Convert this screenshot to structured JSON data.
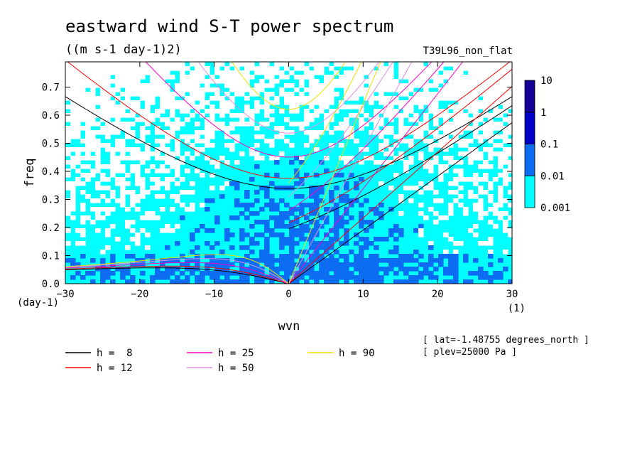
{
  "chart_data": {
    "type": "heatmap",
    "title": "eastward wind S-T power spectrum",
    "units": "((m s-1 day-1)2)",
    "run_label": "T39L96_non_flat",
    "xlabel": "wvn",
    "ylabel": "freq",
    "x_unit": "(1)",
    "y_unit": "(day-1)",
    "xlim": [
      -30,
      30
    ],
    "ylim": [
      0,
      0.79
    ],
    "x_ticks": [
      "−30",
      "−20",
      "−10",
      "0",
      "10",
      "20",
      "30"
    ],
    "x_tick_values": [
      -30,
      -20,
      -10,
      0,
      10,
      20,
      30
    ],
    "y_ticks": [
      "0.0",
      "0.1",
      "0.2",
      "0.3",
      "0.4",
      "0.5",
      "0.6",
      "0.7"
    ],
    "y_tick_values": [
      0,
      0.1,
      0.2,
      0.3,
      0.4,
      0.5,
      0.6,
      0.7
    ],
    "colorbar": {
      "labels": [
        "10",
        "1",
        "0.1",
        "0.01",
        "0.001"
      ],
      "levels": [
        0.001,
        0.01,
        0.1,
        1,
        10
      ],
      "colors": [
        "#00ffff",
        "#0d6df2",
        "#0000c8",
        "#140096"
      ]
    },
    "dispersion_curves": [
      {
        "name": "h =  8",
        "h": 8,
        "color": "#000000"
      },
      {
        "name": "h = 12",
        "h": 12,
        "color": "#ff0000"
      },
      {
        "name": "h = 25",
        "h": 25,
        "color": "#ff00c0"
      },
      {
        "name": "h = 50",
        "h": 50,
        "color": "#e090e0"
      },
      {
        "name": "h = 90",
        "h": 90,
        "color": "#f0e000"
      }
    ],
    "annotations": [
      "[ lat=-1.48755 degrees_north ]",
      "[ plev=25000 Pa ]"
    ]
  }
}
